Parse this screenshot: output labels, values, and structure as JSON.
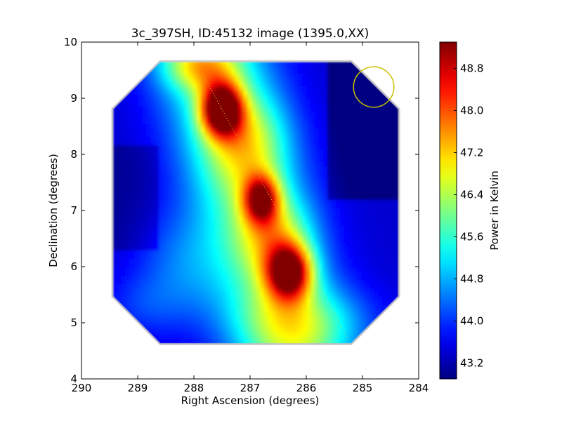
{
  "chart_data": {
    "type": "heatmap",
    "title": "3c_397SH, ID:45132 image (1395.0,XX)",
    "xlabel": "Right Ascension (degrees)",
    "ylabel": "Declination (degrees)",
    "xlim": [
      290,
      284
    ],
    "ylim": [
      4,
      10
    ],
    "x_ticks": [
      "290",
      "289",
      "288",
      "287",
      "286",
      "285",
      "284"
    ],
    "y_ticks": [
      "4",
      "5",
      "6",
      "7",
      "8",
      "9",
      "10"
    ],
    "grid": false,
    "colorbar": {
      "label": "Power in Kelvin",
      "colormap": "jet",
      "range": [
        42.9,
        49.3
      ],
      "ticks": [
        "43.2",
        "44.0",
        "44.8",
        "45.6",
        "46.4",
        "47.2",
        "48.0",
        "48.8"
      ]
    },
    "map_footprint": {
      "ra_range": [
        284.35,
        289.45
      ],
      "dec_range": [
        4.62,
        9.66
      ],
      "shape": "clipped-corner octagon"
    },
    "peaks": [
      {
        "ra": 287.5,
        "dec": 8.8,
        "value": 49.2
      },
      {
        "ra": 286.3,
        "dec": 5.9,
        "value": 48.4
      },
      {
        "ra": 286.8,
        "dec": 7.2,
        "value": 47.6
      }
    ],
    "beam": {
      "ra": 284.8,
      "dec": 9.2,
      "radius_deg": 0.36,
      "color": "#c8c000"
    },
    "track": {
      "start": {
        "ra": 287.8,
        "dec": 9.35
      },
      "end": {
        "ra": 285.25,
        "dec": 4.7
      }
    }
  }
}
